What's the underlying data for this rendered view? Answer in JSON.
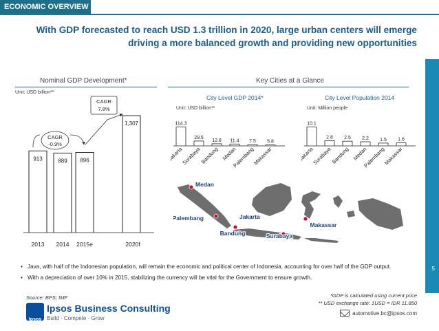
{
  "header": {
    "tab_label": "ECONOMIC OVERVIEW",
    "headline_line1": "With GDP forecasted to reach USD 1.3 trillion in 2020, large urban centers will emerge",
    "headline_line2": "driving a more balanced growth and providing new opportunities",
    "page_number": "5"
  },
  "left_section": {
    "title": "Nominal GDP Development*",
    "unit": "Unit: USD billion**"
  },
  "right_section": {
    "title": "Key Cities at a Glance",
    "gdp_title": "City Level GDP 2014*",
    "gdp_unit": "Unit: USD billion**",
    "pop_title": "City Level Population 2014",
    "pop_unit": "Unit: Million people"
  },
  "map": {
    "labels": [
      "Medan",
      "Palembang",
      "Jakarta",
      "Bandung",
      "Surabaya",
      "Makassar"
    ],
    "land_color": "#6e6e6e",
    "marker_color": "#c8102e"
  },
  "chart_data": [
    {
      "type": "bar",
      "categories": [
        "2013",
        "2014",
        "2015e",
        "2020f"
      ],
      "values": [
        913,
        889,
        896,
        1307
      ],
      "value_labels": [
        "913",
        "889",
        "896",
        "1,307"
      ],
      "annotations": [
        {
          "label": "CAGR",
          "value": "-0.9%"
        },
        {
          "label": "CAGR",
          "value": "7.8%"
        }
      ],
      "bar_color": "#ffffff",
      "ylim": [
        0,
        1400
      ]
    },
    {
      "type": "bar",
      "categories": [
        "Jakarta",
        "Surabaya",
        "Bandung",
        "Medan",
        "Palembang",
        "Makassar"
      ],
      "values": [
        114.3,
        29.5,
        12.8,
        11.4,
        7.5,
        5.8
      ],
      "ylim": [
        0,
        125
      ]
    },
    {
      "type": "bar",
      "categories": [
        "Jakarta",
        "Surabaya",
        "Bandung",
        "Medan",
        "Palembang",
        "Makassar"
      ],
      "values": [
        10.1,
        2.8,
        2.5,
        2.2,
        1.5,
        1.6
      ],
      "ylim": [
        0,
        11
      ]
    }
  ],
  "bullets": [
    "Java, with half of the Indonesian population, will remain the economic and political center of Indonesia, accounting for over half of the GDP output.",
    "With a depreciation of over 10% in 2015, stabilizing the currency will be vital for the Government to ensure growth."
  ],
  "footer": {
    "source": "Source: BPS; IMF",
    "note1": "*GDP is calculated using current price",
    "note2": "** USD exchange rate: 1USD = IDR 11.850",
    "email": "automotive.bc@ipsos.com",
    "logo_mark": "Ipsos",
    "logo_name": "Ipsos Business Consulting",
    "logo_tagline": "Build · Compete · Grow"
  }
}
